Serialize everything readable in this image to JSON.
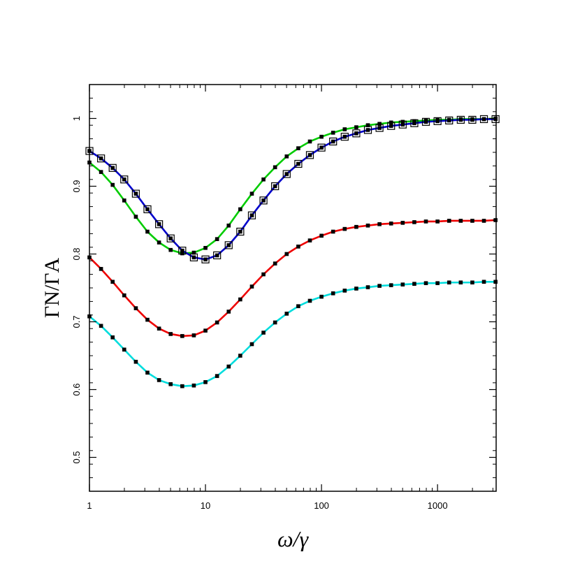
{
  "chart_data": {
    "type": "line",
    "x_scale": "log",
    "xlim": [
      1,
      3200
    ],
    "ylim": [
      0.45,
      1.05
    ],
    "x_ticks": [
      1,
      10,
      100,
      1000
    ],
    "x_tick_labels": [
      "1",
      "10",
      "100",
      "1000"
    ],
    "y_ticks": [
      0.5,
      0.6,
      0.7,
      0.8,
      0.9,
      1.0
    ],
    "y_tick_labels": [
      "0.5",
      "0.6",
      "0.7",
      "0.8",
      "0.9",
      "1"
    ],
    "xlabel": "ω/γ",
    "ylabel": "ΓN/ΓA",
    "grid": false,
    "legend": "none",
    "series": [
      {
        "color": "#00cc00",
        "line_style": "solid",
        "marker": "filled-square",
        "x": [
          1,
          1.259,
          1.585,
          1.995,
          2.512,
          3.162,
          3.981,
          5.012,
          6.31,
          7.943,
          10,
          12.59,
          15.85,
          19.95,
          25.12,
          31.62,
          39.81,
          50.12,
          63.1,
          79.43,
          100,
          125.9,
          158.5,
          199.5,
          251.2,
          316.2,
          398.1,
          501.2,
          631,
          794.3,
          1000,
          1259,
          1585,
          1995,
          2512,
          3162
        ],
        "y": [
          0.935,
          0.921,
          0.902,
          0.879,
          0.855,
          0.833,
          0.817,
          0.806,
          0.801,
          0.802,
          0.809,
          0.822,
          0.842,
          0.866,
          0.889,
          0.91,
          0.928,
          0.944,
          0.956,
          0.966,
          0.973,
          0.979,
          0.984,
          0.987,
          0.99,
          0.992,
          0.994,
          0.995,
          0.996,
          0.997,
          0.998,
          0.998,
          0.999,
          0.999,
          0.999,
          1.0
        ]
      },
      {
        "color": "#0000cc",
        "line_style": "solid",
        "marker": "filled-square",
        "x": [
          1,
          1.259,
          1.585,
          1.995,
          2.512,
          3.162,
          3.981,
          5.012,
          6.31,
          7.943,
          10,
          12.59,
          15.85,
          19.95,
          25.12,
          31.62,
          39.81,
          50.12,
          63.1,
          79.43,
          100,
          125.9,
          158.5,
          199.5,
          251.2,
          316.2,
          398.1,
          501.2,
          631,
          794.3,
          1000,
          1259,
          1585,
          1995,
          2512,
          3162
        ],
        "y": [
          0.952,
          0.941,
          0.927,
          0.91,
          0.889,
          0.866,
          0.844,
          0.823,
          0.805,
          0.795,
          0.792,
          0.798,
          0.813,
          0.833,
          0.857,
          0.879,
          0.9,
          0.918,
          0.933,
          0.946,
          0.957,
          0.966,
          0.973,
          0.978,
          0.983,
          0.986,
          0.989,
          0.991,
          0.993,
          0.995,
          0.996,
          0.997,
          0.998,
          0.998,
          0.999,
          0.999
        ]
      },
      {
        "color": "#0000cc",
        "line_style": "dash-dot",
        "marker": "open-square",
        "x": [
          1,
          1.259,
          1.585,
          1.995,
          2.512,
          3.162,
          3.981,
          5.012,
          6.31,
          7.943,
          10,
          12.59,
          15.85,
          19.95,
          25.12,
          31.62,
          39.81,
          50.12,
          63.1,
          79.43,
          100,
          125.9,
          158.5,
          199.5,
          251.2,
          316.2,
          398.1,
          501.2,
          631,
          794.3,
          1000,
          1259,
          1585,
          1995,
          2512,
          3162
        ],
        "y": [
          0.952,
          0.941,
          0.927,
          0.91,
          0.889,
          0.866,
          0.844,
          0.823,
          0.805,
          0.795,
          0.792,
          0.798,
          0.813,
          0.833,
          0.857,
          0.879,
          0.9,
          0.918,
          0.933,
          0.946,
          0.957,
          0.966,
          0.973,
          0.978,
          0.983,
          0.986,
          0.989,
          0.991,
          0.993,
          0.995,
          0.996,
          0.997,
          0.998,
          0.998,
          0.999,
          0.999
        ]
      },
      {
        "color": "#ee0000",
        "line_style": "solid",
        "marker": "filled-square",
        "x": [
          1,
          1.259,
          1.585,
          1.995,
          2.512,
          3.162,
          3.981,
          5.012,
          6.31,
          7.943,
          10,
          12.59,
          15.85,
          19.95,
          25.12,
          31.62,
          39.81,
          50.12,
          63.1,
          79.43,
          100,
          125.9,
          158.5,
          199.5,
          251.2,
          316.2,
          398.1,
          501.2,
          631,
          794.3,
          1000,
          1259,
          1585,
          1995,
          2512,
          3162
        ],
        "y": [
          0.795,
          0.778,
          0.759,
          0.739,
          0.72,
          0.703,
          0.69,
          0.682,
          0.679,
          0.68,
          0.687,
          0.699,
          0.715,
          0.733,
          0.752,
          0.77,
          0.786,
          0.8,
          0.811,
          0.82,
          0.827,
          0.833,
          0.837,
          0.84,
          0.842,
          0.844,
          0.845,
          0.846,
          0.847,
          0.848,
          0.848,
          0.849,
          0.849,
          0.849,
          0.849,
          0.85
        ]
      },
      {
        "color": "#00dddd",
        "line_style": "solid",
        "marker": "filled-square",
        "x": [
          1,
          1.259,
          1.585,
          1.995,
          2.512,
          3.162,
          3.981,
          5.012,
          6.31,
          7.943,
          10,
          12.59,
          15.85,
          19.95,
          25.12,
          31.62,
          39.81,
          50.12,
          63.1,
          79.43,
          100,
          125.9,
          158.5,
          199.5,
          251.2,
          316.2,
          398.1,
          501.2,
          631,
          794.3,
          1000,
          1259,
          1585,
          1995,
          2512,
          3162
        ],
        "y": [
          0.708,
          0.694,
          0.677,
          0.659,
          0.641,
          0.625,
          0.614,
          0.608,
          0.605,
          0.606,
          0.611,
          0.62,
          0.634,
          0.65,
          0.667,
          0.684,
          0.699,
          0.712,
          0.723,
          0.731,
          0.737,
          0.742,
          0.746,
          0.749,
          0.751,
          0.753,
          0.754,
          0.755,
          0.756,
          0.757,
          0.757,
          0.758,
          0.758,
          0.758,
          0.759,
          0.759
        ]
      }
    ]
  }
}
